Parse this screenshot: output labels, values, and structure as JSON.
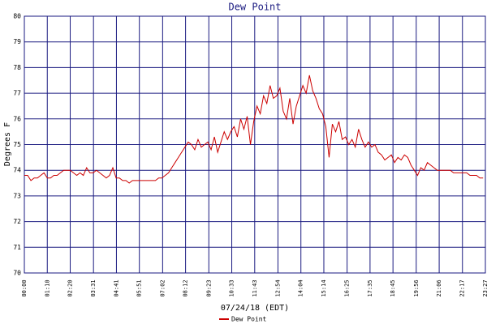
{
  "chart_data": {
    "type": "line",
    "title": "Dew Point",
    "xlabel": "07/24/18 (EDT)",
    "ylabel": "Degrees F",
    "x": [
      0,
      10,
      20,
      30,
      40,
      50,
      60,
      70,
      80,
      90,
      100,
      110,
      120,
      130,
      140,
      150,
      160,
      170,
      180,
      190,
      200,
      210,
      220,
      230,
      240,
      250,
      260,
      270,
      280,
      290,
      300,
      310,
      320,
      330,
      340,
      350,
      360,
      370,
      380,
      390,
      400,
      410,
      420,
      430,
      440,
      450,
      460,
      470,
      480,
      490,
      500,
      510,
      520,
      530,
      540,
      550,
      560,
      570,
      580,
      590,
      600,
      610,
      620,
      630,
      640,
      650,
      660,
      670,
      680,
      690,
      700,
      710,
      720,
      730,
      740,
      750,
      760,
      770,
      780,
      790,
      800,
      810,
      820,
      830,
      840,
      850,
      860,
      870,
      880,
      890,
      900,
      910,
      920,
      930,
      940,
      950,
      960,
      970,
      980,
      990,
      1000,
      1010,
      1020,
      1030,
      1040,
      1050,
      1060,
      1070,
      1080,
      1090,
      1100,
      1110,
      1120,
      1130,
      1140,
      1150,
      1160,
      1170,
      1180,
      1190,
      1200,
      1210,
      1220,
      1230,
      1240,
      1250,
      1260,
      1270,
      1280,
      1290,
      1300,
      1310,
      1320,
      1330,
      1340,
      1350,
      1360,
      1370,
      1380,
      1390,
      1400
    ],
    "series": [
      {
        "name": "Dew Point",
        "color": "#cc0000",
        "values": [
          73.8,
          73.8,
          73.6,
          73.7,
          73.7,
          73.8,
          73.9,
          73.7,
          73.7,
          73.8,
          73.8,
          73.9,
          74.0,
          74.0,
          74.0,
          73.9,
          73.8,
          73.9,
          73.8,
          74.1,
          73.9,
          73.9,
          74.0,
          73.9,
          73.8,
          73.7,
          73.8,
          74.1,
          73.7,
          73.7,
          73.6,
          73.6,
          73.5,
          73.6,
          73.6,
          73.6,
          73.6,
          73.6,
          73.6,
          73.6,
          73.6,
          73.7,
          73.7,
          73.8,
          73.9,
          74.1,
          74.3,
          74.5,
          74.7,
          74.9,
          75.1,
          75.0,
          74.8,
          75.2,
          74.9,
          75.0,
          75.1,
          74.8,
          75.3,
          74.7,
          75.1,
          75.5,
          75.2,
          75.5,
          75.7,
          75.3,
          76.0,
          75.6,
          76.1,
          75.0,
          75.9,
          76.5,
          76.2,
          76.9,
          76.6,
          77.3,
          76.8,
          76.9,
          77.2,
          76.3,
          76.0,
          76.8,
          75.8,
          76.5,
          76.9,
          77.3,
          77.0,
          77.7,
          77.1,
          76.8,
          76.4,
          76.2,
          75.7,
          74.5,
          75.8,
          75.5,
          75.9,
          75.2,
          75.3,
          75.0,
          75.2,
          74.9,
          75.6,
          75.2,
          74.9,
          75.1,
          74.9,
          75.0,
          74.7,
          74.6,
          74.4,
          74.5,
          74.6,
          74.3,
          74.5,
          74.4,
          74.6,
          74.5,
          74.2,
          74.0,
          73.8,
          74.1,
          74.0,
          74.3,
          74.2,
          74.1,
          74.0,
          74.0,
          74.0,
          74.0,
          74.0,
          73.9,
          73.9,
          73.9,
          73.9,
          73.9,
          73.8,
          73.8,
          73.8,
          73.7,
          73.7
        ]
      }
    ],
    "xlim": [
      0,
      1407
    ],
    "xticks": [
      {
        "value": 0,
        "label": "00:00"
      },
      {
        "value": 70,
        "label": "01:10"
      },
      {
        "value": 140,
        "label": "02:20"
      },
      {
        "value": 211,
        "label": "03:31"
      },
      {
        "value": 281,
        "label": "04:41"
      },
      {
        "value": 351,
        "label": "05:51"
      },
      {
        "value": 422,
        "label": "07:02"
      },
      {
        "value": 492,
        "label": "08:12"
      },
      {
        "value": 563,
        "label": "09:23"
      },
      {
        "value": 633,
        "label": "10:33"
      },
      {
        "value": 703,
        "label": "11:43"
      },
      {
        "value": 774,
        "label": "12:54"
      },
      {
        "value": 844,
        "label": "14:04"
      },
      {
        "value": 914,
        "label": "15:14"
      },
      {
        "value": 985,
        "label": "16:25"
      },
      {
        "value": 1055,
        "label": "17:35"
      },
      {
        "value": 1125,
        "label": "18:45"
      },
      {
        "value": 1196,
        "label": "19:56"
      },
      {
        "value": 1266,
        "label": "21:06"
      },
      {
        "value": 1337,
        "label": "22:17"
      },
      {
        "value": 1407,
        "label": "23:27"
      }
    ],
    "ylim": [
      70,
      80
    ],
    "yticks": [
      70,
      71,
      72,
      73,
      74,
      75,
      76,
      77,
      78,
      79,
      80
    ],
    "grid": true,
    "legend": "bottom"
  }
}
